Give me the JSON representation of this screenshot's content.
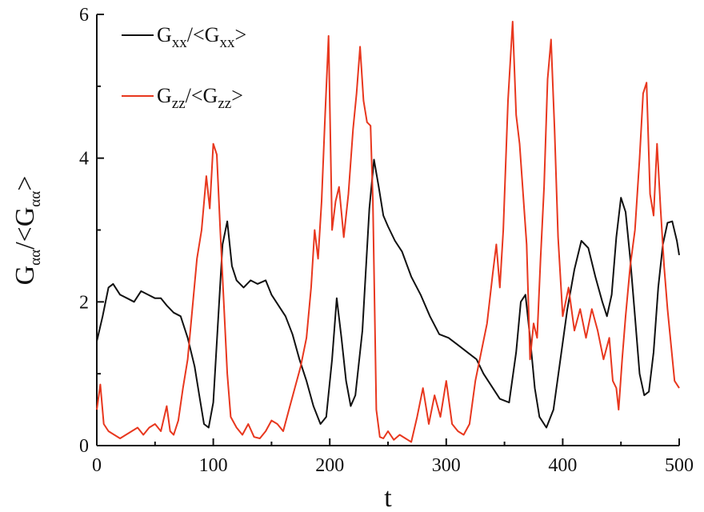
{
  "chart_data": {
    "type": "line",
    "title": "",
    "xlabel": "t",
    "ylabel": {
      "main": "G",
      "sub": "αα",
      "mid": "/<G",
      "sub2": "αα",
      "end": ">"
    },
    "xlim": [
      0,
      500
    ],
    "ylim": [
      0,
      6
    ],
    "xticks": [
      "0",
      "100",
      "200",
      "300",
      "400",
      "500"
    ],
    "yticks": [
      "0",
      "2",
      "4",
      "6"
    ],
    "grid": false,
    "legend_position": "top-left",
    "series": [
      {
        "name": {
          "main": "G",
          "sub": "xx",
          "mid": "/<G",
          "sub2": "xx",
          "end": ">"
        },
        "color": "#111111",
        "points": [
          [
            0,
            1.45
          ],
          [
            5,
            1.8
          ],
          [
            10,
            2.2
          ],
          [
            14,
            2.25
          ],
          [
            20,
            2.1
          ],
          [
            26,
            2.05
          ],
          [
            32,
            2.0
          ],
          [
            38,
            2.15
          ],
          [
            44,
            2.1
          ],
          [
            50,
            2.05
          ],
          [
            55,
            2.05
          ],
          [
            60,
            1.95
          ],
          [
            66,
            1.85
          ],
          [
            72,
            1.8
          ],
          [
            78,
            1.5
          ],
          [
            84,
            1.1
          ],
          [
            88,
            0.7
          ],
          [
            92,
            0.3
          ],
          [
            96,
            0.25
          ],
          [
            100,
            0.6
          ],
          [
            104,
            1.7
          ],
          [
            108,
            2.8
          ],
          [
            112,
            3.12
          ],
          [
            116,
            2.5
          ],
          [
            120,
            2.3
          ],
          [
            126,
            2.2
          ],
          [
            132,
            2.3
          ],
          [
            138,
            2.25
          ],
          [
            145,
            2.3
          ],
          [
            150,
            2.1
          ],
          [
            156,
            1.95
          ],
          [
            162,
            1.8
          ],
          [
            168,
            1.55
          ],
          [
            174,
            1.2
          ],
          [
            180,
            0.9
          ],
          [
            186,
            0.55
          ],
          [
            192,
            0.3
          ],
          [
            197,
            0.4
          ],
          [
            202,
            1.2
          ],
          [
            206,
            2.05
          ],
          [
            210,
            1.5
          ],
          [
            214,
            0.9
          ],
          [
            218,
            0.55
          ],
          [
            222,
            0.7
          ],
          [
            228,
            1.6
          ],
          [
            234,
            3.3
          ],
          [
            238,
            3.98
          ],
          [
            242,
            3.6
          ],
          [
            246,
            3.2
          ],
          [
            250,
            3.05
          ],
          [
            256,
            2.85
          ],
          [
            262,
            2.7
          ],
          [
            270,
            2.35
          ],
          [
            278,
            2.1
          ],
          [
            286,
            1.8
          ],
          [
            294,
            1.55
          ],
          [
            302,
            1.5
          ],
          [
            310,
            1.4
          ],
          [
            318,
            1.3
          ],
          [
            326,
            1.2
          ],
          [
            332,
            1.0
          ],
          [
            338,
            0.85
          ],
          [
            346,
            0.65
          ],
          [
            354,
            0.6
          ],
          [
            360,
            1.3
          ],
          [
            364,
            2.0
          ],
          [
            368,
            2.1
          ],
          [
            372,
            1.5
          ],
          [
            376,
            0.8
          ],
          [
            380,
            0.4
          ],
          [
            386,
            0.25
          ],
          [
            392,
            0.5
          ],
          [
            398,
            1.2
          ],
          [
            404,
            1.9
          ],
          [
            410,
            2.45
          ],
          [
            416,
            2.85
          ],
          [
            422,
            2.75
          ],
          [
            428,
            2.35
          ],
          [
            434,
            2.0
          ],
          [
            438,
            1.8
          ],
          [
            442,
            2.1
          ],
          [
            446,
            2.9
          ],
          [
            450,
            3.45
          ],
          [
            454,
            3.25
          ],
          [
            458,
            2.6
          ],
          [
            462,
            1.8
          ],
          [
            466,
            1.0
          ],
          [
            470,
            0.7
          ],
          [
            474,
            0.75
          ],
          [
            478,
            1.3
          ],
          [
            482,
            2.2
          ],
          [
            486,
            2.8
          ],
          [
            490,
            3.1
          ],
          [
            494,
            3.12
          ],
          [
            498,
            2.85
          ],
          [
            500,
            2.65
          ]
        ]
      },
      {
        "name": {
          "main": "G",
          "sub": "zz",
          "mid": "/<G",
          "sub2": "zz",
          "end": ">"
        },
        "color": "#e8371e",
        "points": [
          [
            0,
            0.5
          ],
          [
            3,
            0.85
          ],
          [
            6,
            0.3
          ],
          [
            10,
            0.2
          ],
          [
            15,
            0.15
          ],
          [
            20,
            0.1
          ],
          [
            25,
            0.15
          ],
          [
            30,
            0.2
          ],
          [
            35,
            0.25
          ],
          [
            40,
            0.15
          ],
          [
            45,
            0.25
          ],
          [
            50,
            0.3
          ],
          [
            55,
            0.2
          ],
          [
            60,
            0.55
          ],
          [
            63,
            0.2
          ],
          [
            66,
            0.15
          ],
          [
            70,
            0.35
          ],
          [
            74,
            0.8
          ],
          [
            78,
            1.2
          ],
          [
            82,
            1.9
          ],
          [
            86,
            2.6
          ],
          [
            90,
            3.0
          ],
          [
            94,
            3.75
          ],
          [
            97,
            3.3
          ],
          [
            100,
            4.2
          ],
          [
            103,
            4.05
          ],
          [
            106,
            3.0
          ],
          [
            109,
            2.0
          ],
          [
            112,
            1.0
          ],
          [
            115,
            0.4
          ],
          [
            120,
            0.25
          ],
          [
            125,
            0.15
          ],
          [
            130,
            0.3
          ],
          [
            135,
            0.12
          ],
          [
            140,
            0.1
          ],
          [
            145,
            0.2
          ],
          [
            150,
            0.35
          ],
          [
            155,
            0.3
          ],
          [
            160,
            0.2
          ],
          [
            165,
            0.5
          ],
          [
            170,
            0.8
          ],
          [
            175,
            1.1
          ],
          [
            180,
            1.5
          ],
          [
            184,
            2.2
          ],
          [
            187,
            3.0
          ],
          [
            190,
            2.6
          ],
          [
            193,
            3.4
          ],
          [
            196,
            4.6
          ],
          [
            199,
            5.7
          ],
          [
            202,
            3.0
          ],
          [
            205,
            3.4
          ],
          [
            208,
            3.6
          ],
          [
            212,
            2.9
          ],
          [
            216,
            3.5
          ],
          [
            220,
            4.4
          ],
          [
            223,
            4.9
          ],
          [
            226,
            5.55
          ],
          [
            229,
            4.8
          ],
          [
            232,
            4.5
          ],
          [
            235,
            4.45
          ],
          [
            237,
            3.4
          ],
          [
            240,
            0.5
          ],
          [
            243,
            0.12
          ],
          [
            246,
            0.1
          ],
          [
            250,
            0.2
          ],
          [
            255,
            0.08
          ],
          [
            260,
            0.15
          ],
          [
            265,
            0.1
          ],
          [
            270,
            0.05
          ],
          [
            275,
            0.4
          ],
          [
            280,
            0.8
          ],
          [
            285,
            0.3
          ],
          [
            290,
            0.7
          ],
          [
            295,
            0.4
          ],
          [
            300,
            0.9
          ],
          [
            305,
            0.3
          ],
          [
            310,
            0.2
          ],
          [
            315,
            0.15
          ],
          [
            320,
            0.3
          ],
          [
            325,
            0.9
          ],
          [
            330,
            1.3
          ],
          [
            335,
            1.7
          ],
          [
            340,
            2.4
          ],
          [
            343,
            2.8
          ],
          [
            346,
            2.2
          ],
          [
            349,
            3.0
          ],
          [
            353,
            4.8
          ],
          [
            357,
            5.9
          ],
          [
            360,
            4.6
          ],
          [
            363,
            4.2
          ],
          [
            366,
            3.5
          ],
          [
            369,
            2.8
          ],
          [
            372,
            1.2
          ],
          [
            375,
            1.7
          ],
          [
            378,
            1.5
          ],
          [
            381,
            2.6
          ],
          [
            384,
            3.6
          ],
          [
            387,
            5.1
          ],
          [
            390,
            5.65
          ],
          [
            393,
            4.4
          ],
          [
            396,
            2.9
          ],
          [
            400,
            1.8
          ],
          [
            405,
            2.2
          ],
          [
            410,
            1.6
          ],
          [
            415,
            1.9
          ],
          [
            420,
            1.5
          ],
          [
            425,
            1.9
          ],
          [
            430,
            1.6
          ],
          [
            435,
            1.2
          ],
          [
            440,
            1.5
          ],
          [
            443,
            0.9
          ],
          [
            446,
            0.8
          ],
          [
            448,
            0.5
          ],
          [
            451,
            1.2
          ],
          [
            454,
            1.8
          ],
          [
            458,
            2.5
          ],
          [
            462,
            3.0
          ],
          [
            466,
            4.0
          ],
          [
            469,
            4.9
          ],
          [
            472,
            5.05
          ],
          [
            475,
            3.5
          ],
          [
            478,
            3.2
          ],
          [
            481,
            4.2
          ],
          [
            484,
            3.3
          ],
          [
            487,
            2.5
          ],
          [
            490,
            1.9
          ],
          [
            493,
            1.4
          ],
          [
            496,
            0.9
          ],
          [
            500,
            0.8
          ]
        ]
      }
    ]
  }
}
